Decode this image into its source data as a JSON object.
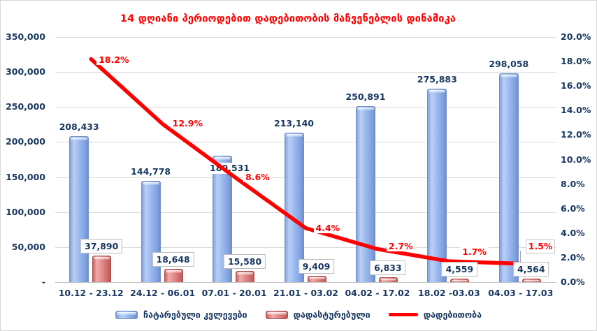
{
  "title": "14 დღიანი პერიოდებით დადებითობის მაჩვენებლის დინამიკა",
  "chart_data": {
    "type": "combo-bar-line",
    "categories": [
      "10.12 - 23.12",
      "24.12 - 06.01",
      "07.01 - 20.01",
      "21.01 - 03.02",
      "04.02 - 17.02",
      "18.02 -03.03",
      "04.03 - 17.03"
    ],
    "series": [
      {
        "name": "ჩატარებული კვლევები",
        "type": "bar",
        "axis": "left",
        "color": "#8FAADC",
        "values": [
          208433,
          144778,
          180531,
          213140,
          250891,
          275883,
          298058
        ],
        "labels": [
          "208,433",
          "144,778",
          "180,531",
          "213,140",
          "250,891",
          "275,883",
          "298,058"
        ]
      },
      {
        "name": "დადასტურებული",
        "type": "bar",
        "axis": "left",
        "color": "#DD7E7E",
        "values": [
          37890,
          18648,
          15580,
          9409,
          6833,
          4559,
          4564
        ],
        "labels": [
          "37,890",
          "18,648",
          "15,580",
          "9,409",
          "6,833",
          "4,559",
          "4,564"
        ]
      },
      {
        "name": "დადებითობა",
        "type": "line",
        "axis": "right",
        "color": "#FF0000",
        "values": [
          18.2,
          12.9,
          8.6,
          4.4,
          2.7,
          1.7,
          1.5
        ],
        "labels": [
          "18.2%",
          "12.9%",
          "8.6%",
          "4.4%",
          "2.7%",
          "1.7%",
          "1.5%"
        ]
      }
    ],
    "left_axis": {
      "ticks": [
        "350,000",
        "300,000",
        "250,000",
        "200,000",
        "150,000",
        "100,000",
        "50,000",
        "-"
      ],
      "min": 0,
      "max": 350000
    },
    "right_axis": {
      "ticks": [
        "20.0%",
        "18.0%",
        "16.0%",
        "14.0%",
        "12.0%",
        "10.0%",
        "8.0%",
        "6.0%",
        "4.0%",
        "2.0%",
        "0.0%"
      ],
      "min": 0,
      "max": 20
    },
    "legend_position": "bottom",
    "grid": true,
    "title_color": "#FF0000",
    "text_color": "#17375E"
  }
}
